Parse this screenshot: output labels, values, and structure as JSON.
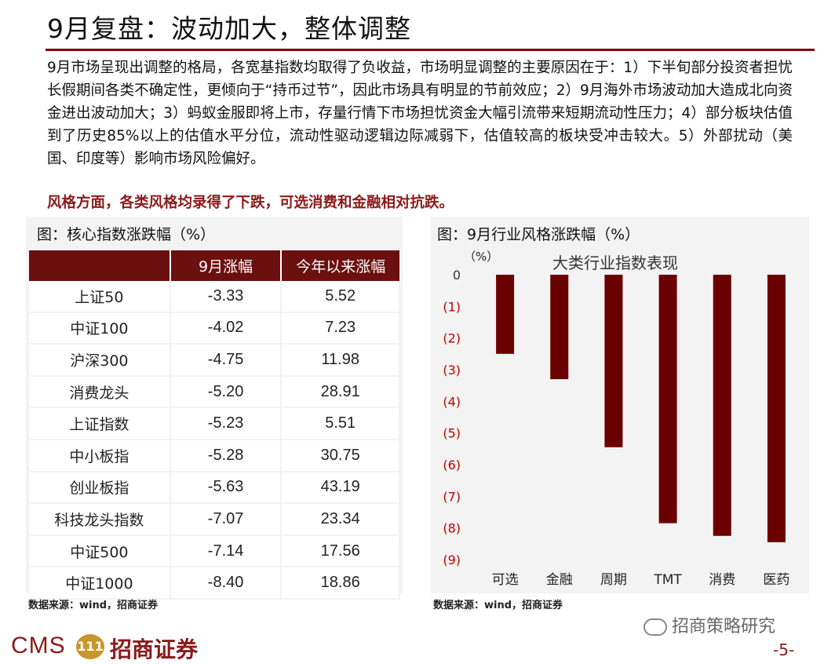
{
  "header": {
    "title": "9月复盘：波动加大，整体调整",
    "body": "9月市场呈现出调整的格局，各宽基指数均取得了负收益，市场明显调整的主要原因在于：1）下半旬部分投资者担忧长假期间各类不确定性，更倾向于“持币过节”，因此市场具有明显的节前效应；2）9月海外市场波动加大造成北向资金进出波动加大；3）蚂蚁金服即将上市，存量行情下市场担忧资金大幅引流带来短期流动性压力；4）部分板块估值到了历史85%以上的估值水平分位，流动性驱动逻辑边际减弱下，估值较高的板块受冲击较大。5）外部扰动（美国、印度等）影响市场风险偏好。",
    "style_line": "风格方面，各类风格均录得了下跌，可选消费和金融相对抗跌。"
  },
  "left_panel": {
    "title": "图：核心指数涨跌幅（%）",
    "source": "数据来源：wind，招商证券"
  },
  "right_panel": {
    "title": "图：9月行业风格涨跌幅（%）",
    "source": "数据来源：wind，招商证券"
  },
  "footer": {
    "logo": "CMS",
    "badge": "111",
    "company": "招商证券",
    "wechat": "招商策略研究",
    "page": "-5-"
  },
  "colors": {
    "brand": "#6b0f0f",
    "bar": "#6b0000",
    "negative_tick": "#c00000"
  },
  "chart_data": [
    {
      "type": "table",
      "columns": [
        "",
        "9月涨幅",
        "今年以来涨幅"
      ],
      "rows": [
        [
          "上证50",
          "-3.33",
          "5.52"
        ],
        [
          "中证100",
          "-4.02",
          "7.23"
        ],
        [
          "沪深300",
          "-4.75",
          "11.98"
        ],
        [
          "消费龙头",
          "-5.20",
          "28.91"
        ],
        [
          "上证指数",
          "-5.23",
          "5.51"
        ],
        [
          "中小板指",
          "-5.28",
          "30.75"
        ],
        [
          "创业板指",
          "-5.63",
          "43.19"
        ],
        [
          "科技龙头指数",
          "-7.07",
          "23.34"
        ],
        [
          "中证500",
          "-7.14",
          "17.56"
        ],
        [
          "中证1000",
          "-8.40",
          "18.86"
        ]
      ]
    },
    {
      "type": "bar",
      "title": "大类行业指数表现",
      "ylabel": "（%）",
      "categories": [
        "可选",
        "金融",
        "周期",
        "TMT",
        "消费",
        "医药"
      ],
      "values": [
        -2.5,
        -3.3,
        -5.45,
        -7.85,
        -8.25,
        -8.45
      ],
      "ylim": [
        -9,
        0
      ],
      "yticks": [
        "0",
        "(1)",
        "(2)",
        "(3)",
        "(4)",
        "(5)",
        "(6)",
        "(7)",
        "(8)",
        "(9)"
      ],
      "grid": false
    }
  ]
}
